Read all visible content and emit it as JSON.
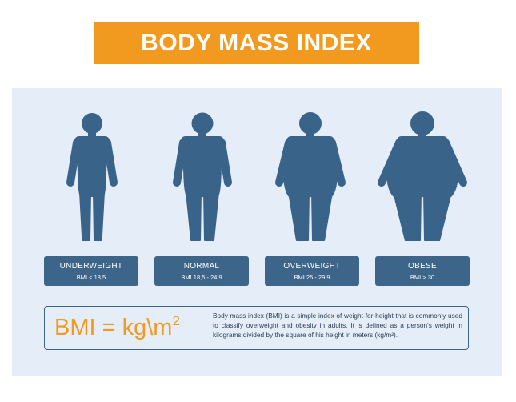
{
  "header": {
    "title": "BODY MASS INDEX"
  },
  "categories": [
    {
      "label": "UNDERWEIGHT",
      "range": "BMI < 18,5"
    },
    {
      "label": "NORMAL",
      "range": "BMI 18,5 - 24,9"
    },
    {
      "label": "OVERWEIGHT",
      "range": "BMI 25 - 29,9"
    },
    {
      "label": "OBESE",
      "range": "BMI > 30"
    }
  ],
  "formula": {
    "text": "BMI = kg\\m",
    "exponent": "2"
  },
  "description": "Body mass index (BMI) is a simple index of weight-for-height that is commonly used to classify overweight and obesity in adults. It is defined as a person's weight in kilograms divided by the square of his height in meters (kg/m²)."
}
